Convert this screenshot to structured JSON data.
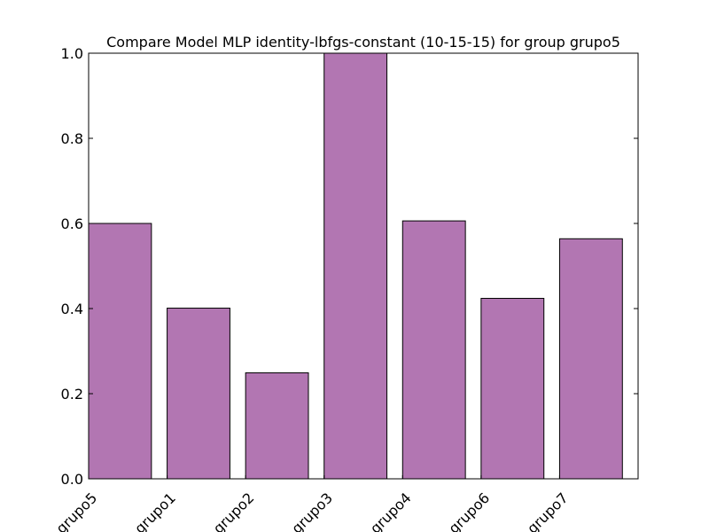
{
  "chart_data": {
    "type": "bar",
    "title": "Compare Model MLP identity-lbfgs-constant (10-15-15) for group grupo5",
    "xlabel": "",
    "ylabel": "",
    "categories": [
      "grupo5",
      "grupo1",
      "grupo2",
      "grupo3",
      "grupo4",
      "grupo6",
      "grupo7"
    ],
    "values": [
      0.6,
      0.401,
      0.249,
      1.0,
      0.606,
      0.424,
      0.564
    ],
    "ylim": [
      0,
      1.0
    ],
    "yticks": [
      "0.0",
      "0.2",
      "0.4",
      "0.6",
      "0.8",
      "1.0"
    ],
    "bar_color": "#b276b2",
    "grid": false,
    "legend": "none"
  }
}
